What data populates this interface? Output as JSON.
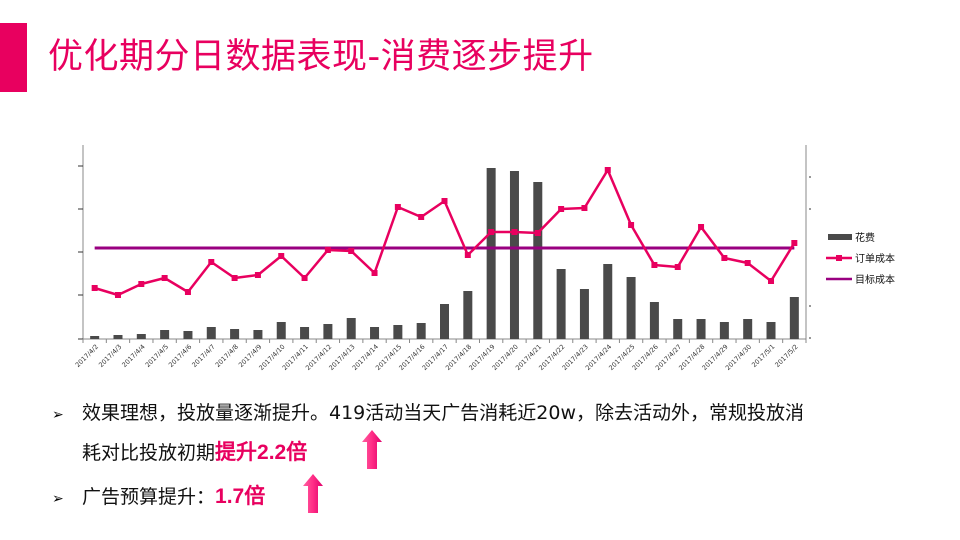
{
  "page": {
    "title": "优化期分日数据表现-消费逐步提升",
    "accent_color": "#e8005f"
  },
  "legend": {
    "items": [
      {
        "label": "花费",
        "color": "#4a4a4a",
        "type": "bar"
      },
      {
        "label": "订单成本",
        "color": "#e8005f",
        "type": "line-marker"
      },
      {
        "label": "目标成本",
        "color": "#990080",
        "type": "line"
      }
    ]
  },
  "bullets": [
    {
      "text_line1": "效果理想，投放量逐渐提升。419活动当天广告消耗近20w，除去活动外，常规投放消",
      "text_line2": "耗对比投放初期",
      "highlight": "提升2.2倍",
      "icon": "up-arrow-icon"
    },
    {
      "text": "广告预算提升：",
      "highlight": "1.7倍",
      "icon": "up-arrow-icon"
    }
  ],
  "chart_data": {
    "type": "bar+line",
    "title": "",
    "xlabel": "",
    "ylabel": "",
    "y_axis_labels_visible": false,
    "categories": [
      "2017/4/2",
      "2017/4/3",
      "2017/4/4",
      "2017/4/5",
      "2017/4/6",
      "2017/4/7",
      "2017/4/8",
      "2017/4/9",
      "2017/4/10",
      "2017/4/11",
      "2017/4/12",
      "2017/4/13",
      "2017/4/14",
      "2017/4/15",
      "2017/4/16",
      "2017/4/17",
      "2017/4/18",
      "2017/4/19",
      "2017/4/20",
      "2017/4/21",
      "2017/4/22",
      "2017/4/23",
      "2017/4/24",
      "2017/4/25",
      "2017/4/26",
      "2017/4/27",
      "2017/4/28",
      "2017/4/29",
      "2017/4/30",
      "2017/5/1",
      "2017/5/2"
    ],
    "series": [
      {
        "name": "花费",
        "type": "bar",
        "axis": "left",
        "color": "#4a4a4a",
        "values": [
          3,
          4,
          5,
          9,
          8,
          12,
          10,
          9,
          17,
          12,
          15,
          21,
          12,
          14,
          16,
          35,
          48,
          171,
          168,
          157,
          70,
          50,
          75,
          62,
          37,
          20,
          20,
          17,
          20,
          17,
          42
        ]
      },
      {
        "name": "订单成本",
        "type": "line",
        "axis": "right",
        "color": "#e8005f",
        "marker": "square",
        "values": [
          51,
          44,
          55,
          61,
          47,
          77,
          61,
          64,
          83,
          61,
          89,
          88,
          66,
          132,
          122,
          138,
          84,
          107,
          107,
          106,
          130,
          131,
          169,
          114,
          74,
          72,
          112,
          81,
          76,
          58,
          96
        ]
      },
      {
        "name": "目标成本",
        "type": "line",
        "axis": "right",
        "color": "#990080",
        "values": [
          91,
          91,
          91,
          91,
          91,
          91,
          91,
          91,
          91,
          91,
          91,
          91,
          91,
          91,
          91,
          91,
          91,
          91,
          91,
          91,
          91,
          91,
          91,
          91,
          91,
          91,
          91,
          91,
          91,
          91,
          91
        ]
      }
    ],
    "note": "Y-axis tick labels are not shown; values are relative pixel-derived estimates",
    "legend_position": "right",
    "grid": false
  }
}
